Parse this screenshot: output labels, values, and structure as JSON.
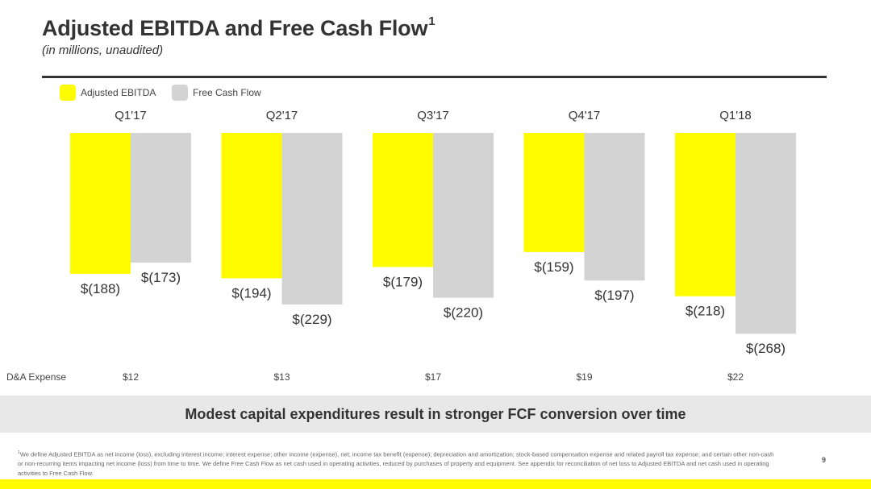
{
  "slide": {
    "title": "Adjusted EBITDA and Free Cash Flow",
    "title_footnote_mark": "1",
    "subtitle": "(in millions, unaudited)",
    "banner": "Modest capital expenditures result in stronger FCF conversion over time",
    "footnote_mark": "1",
    "footnote": "We define Adjusted EBITDA as net income (loss), excluding interest income; interest expense; other income (expense), net; income tax benefit (expense); depreciation and amortization; stock-based compensation expense and related payroll tax expense; and certain other non-cash or non-recurring items impacting net income (loss) from time to time. We define Free Cash Flow as net cash used in operating activities, reduced by purchases of property and equipment. See appendix for reconciliation of net loss to Adjusted EBITDA and net cash used in operating activities to Free Cash Flow.",
    "page_number": "9"
  },
  "legend": {
    "adjusted_ebitda": "Adjusted EBITDA",
    "free_cash_flow": "Free Cash Flow"
  },
  "colors": {
    "adjusted_ebitda": "#FFFC00",
    "free_cash_flow": "#D3D3D3",
    "text": "#333333"
  },
  "chart_data": {
    "type": "bar",
    "orientation": "vertical-negative",
    "categories": [
      "Q1'17",
      "Q2'17",
      "Q3'17",
      "Q4'17",
      "Q1'18"
    ],
    "series": [
      {
        "name": "Adjusted EBITDA",
        "values": [
          -188,
          -194,
          -179,
          -159,
          -218
        ],
        "labels": [
          "$(188)",
          "$(194)",
          "$(179)",
          "$(159)",
          "$(218)"
        ]
      },
      {
        "name": "Free Cash Flow",
        "values": [
          -173,
          -229,
          -220,
          -197,
          -268
        ],
        "labels": [
          "$(173)",
          "$(229)",
          "$(220)",
          "$(197)",
          "$(268)"
        ]
      }
    ],
    "units": "USD millions",
    "da_expense": {
      "label": "D&A Expense",
      "values": [
        "$12",
        "$13",
        "$17",
        "$19",
        "$22"
      ]
    }
  }
}
